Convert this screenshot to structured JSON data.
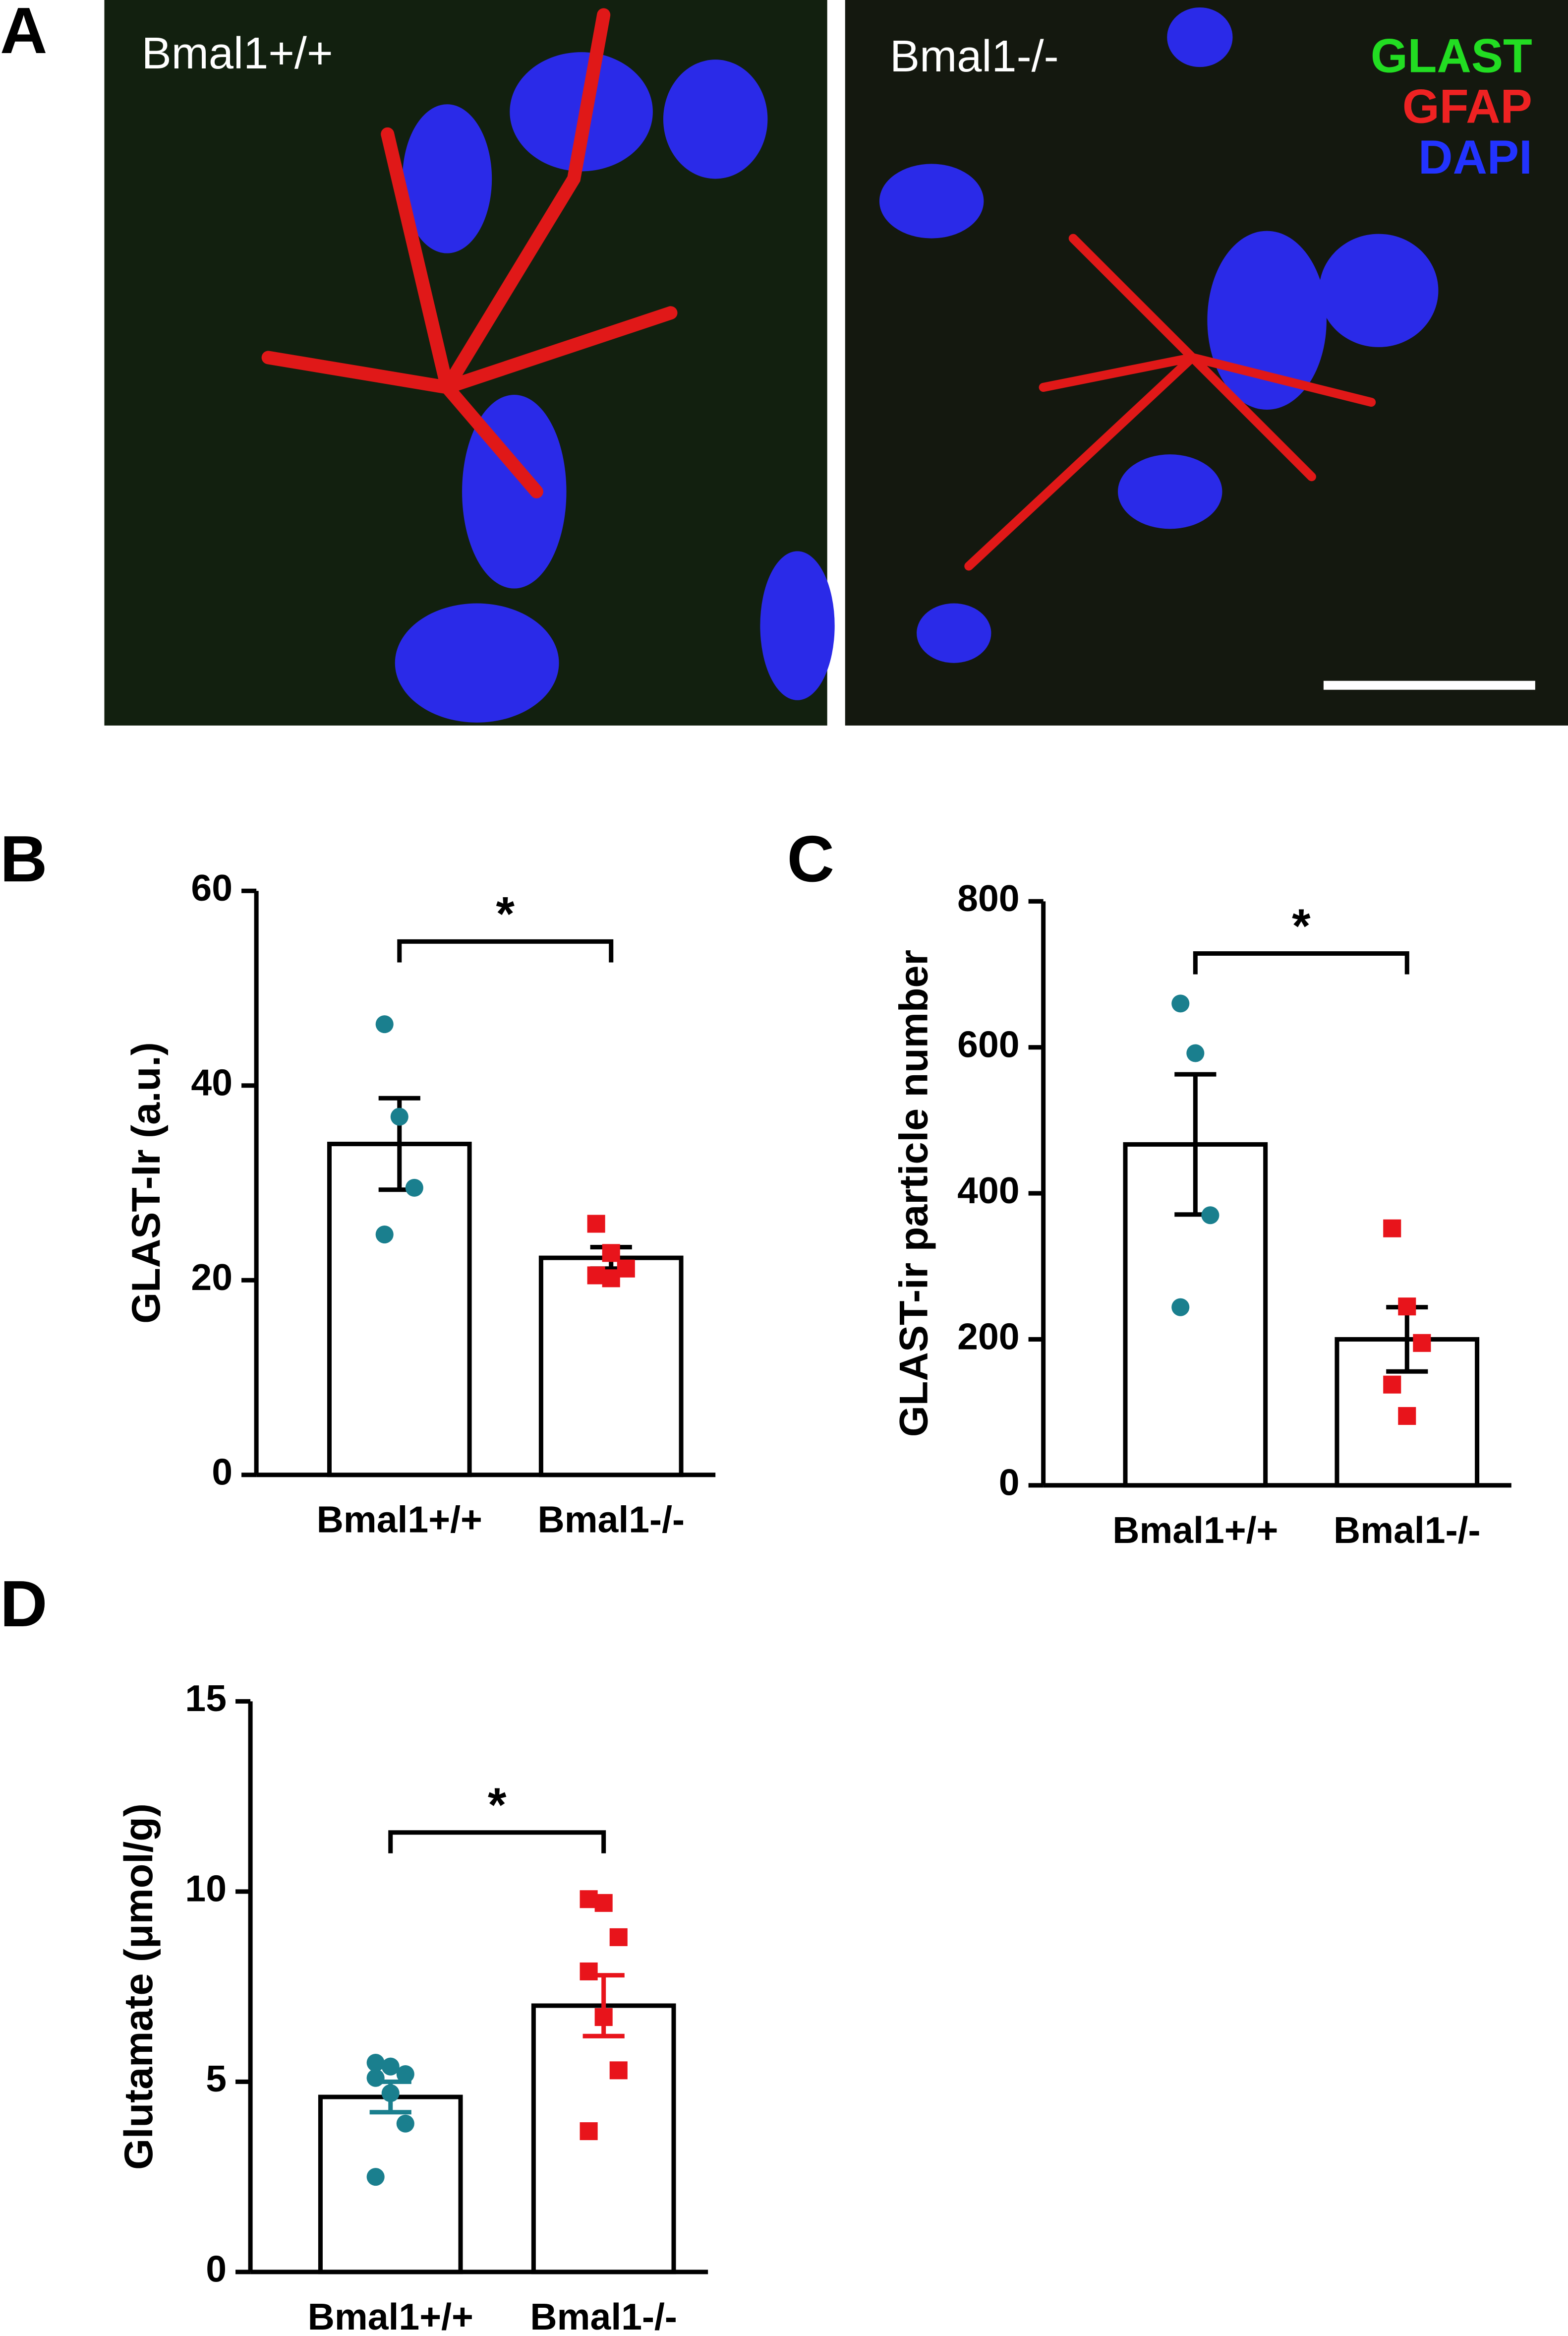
{
  "panel_a": {
    "label": "A",
    "titles": [
      "Bmal1+/+",
      "Bmal1-/-"
    ],
    "channels": [
      {
        "name": "GLAST",
        "color": "#22dd22"
      },
      {
        "name": "GFAP",
        "color": "#ee2222"
      },
      {
        "name": "DAPI",
        "color": "#2233ff"
      }
    ]
  },
  "chart_data": [
    {
      "type": "bar",
      "panel": "B",
      "y_label": "GLAST-Ir (a.u.)",
      "categories": [
        "Bmal1+/+",
        "Bmal1-/-"
      ],
      "values": [
        34,
        22.3
      ],
      "errors": [
        4.7,
        1.1
      ],
      "error_colors": [
        "#000000",
        "#000000"
      ],
      "points": [
        [
          46.3,
          36.8,
          29.5,
          24.7
        ],
        [
          25.8,
          22.8,
          21.2,
          20.5,
          20.2
        ]
      ],
      "point_shapes": [
        "circle",
        "square"
      ],
      "point_colors": [
        "#1a7f8e",
        "#e8141b"
      ],
      "ylim": [
        0,
        60
      ],
      "yticks": [
        0,
        20,
        40,
        60
      ],
      "significance": "*"
    },
    {
      "type": "bar",
      "panel": "C",
      "y_label": "GLAST-ir particle number",
      "categories": [
        "Bmal1+/+",
        "Bmal1-/-"
      ],
      "values": [
        467,
        200
      ],
      "errors": [
        96,
        44
      ],
      "error_colors": [
        "#000000",
        "#000000"
      ],
      "points": [
        [
          660,
          592,
          370,
          244
        ],
        [
          352,
          245,
          195,
          138,
          95
        ]
      ],
      "point_shapes": [
        "circle",
        "square"
      ],
      "point_colors": [
        "#1a7f8e",
        "#e8141b"
      ],
      "ylim": [
        0,
        800
      ],
      "yticks": [
        0,
        200,
        400,
        600,
        800
      ],
      "significance": "*"
    },
    {
      "type": "bar",
      "panel": "D",
      "y_label": "Glutamate (μmol/g)",
      "categories": [
        "Bmal1+/+",
        "Bmal1-/-"
      ],
      "values": [
        4.6,
        7.0
      ],
      "errors": [
        0.4,
        0.8
      ],
      "error_colors": [
        "#1a7f8e",
        "#e8141b"
      ],
      "points": [
        [
          5.5,
          5.4,
          5.2,
          5.1,
          4.7,
          3.9,
          2.5
        ],
        [
          9.8,
          9.7,
          8.8,
          7.9,
          6.7,
          5.3,
          3.7
        ]
      ],
      "point_shapes": [
        "circle",
        "square"
      ],
      "point_colors": [
        "#1a7f8e",
        "#e8141b"
      ],
      "ylim": [
        0,
        15
      ],
      "yticks": [
        0,
        5,
        10,
        15
      ],
      "significance": "*"
    }
  ]
}
